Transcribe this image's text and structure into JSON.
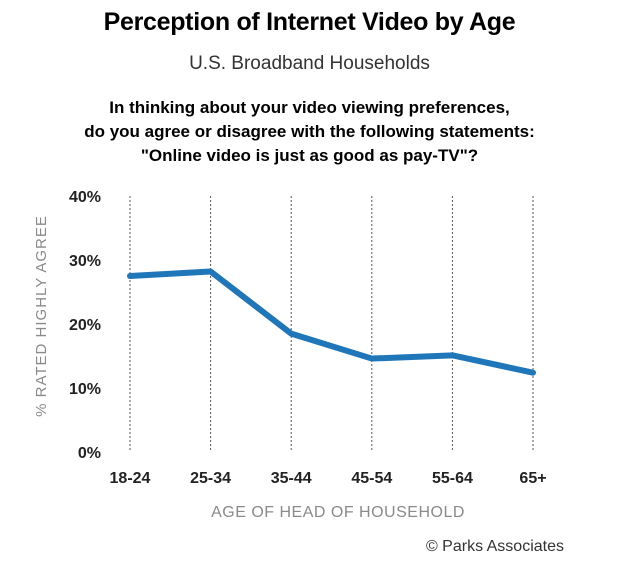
{
  "title": "Perception of Internet Video by Age",
  "subtitle": "U.S. Broadband Households",
  "question": {
    "line1": "In thinking about your video viewing preferences,",
    "line2": "do you agree or disagree with the following statements:",
    "line3": "\"Online video is just as good as pay-TV\"?"
  },
  "credit": "© Parks Associates",
  "chart_data": {
    "type": "line",
    "categories": [
      "18-24",
      "25-34",
      "35-44",
      "45-54",
      "55-64",
      "65+"
    ],
    "series": [
      {
        "name": "",
        "values": [
          27.5,
          28.2,
          18.5,
          14.6,
          15.1,
          12.4
        ]
      }
    ],
    "xlabel": "AGE OF HEAD OF HOUSEHOLD",
    "ylabel": "% RATED HIGHLY AGREE",
    "ylim": [
      0,
      40
    ],
    "yticks": [
      "0%",
      "10%",
      "20%",
      "30%",
      "40%"
    ],
    "grid": "vertical dotted lines at each category",
    "line_color": "#1f77b9"
  }
}
